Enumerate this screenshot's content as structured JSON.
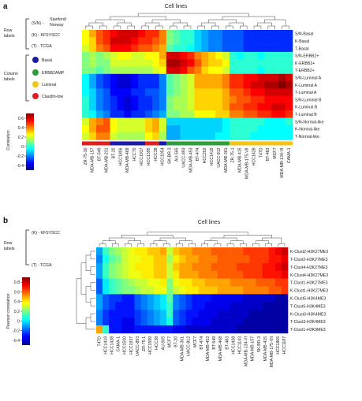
{
  "chart_data": [
    {
      "type": "heatmap",
      "panel": "a",
      "title": "Cell lines",
      "colorbar_label": "Correlation",
      "colorbar_ticks": [
        -0.4,
        -0.2,
        0,
        0.2,
        0.4,
        0.6
      ],
      "clim": [
        -0.5,
        0.7
      ],
      "row_legend_title": "Row labels",
      "row_legend": [
        {
          "code": "(S/N) - ",
          "name": "Stanford/ Norway"
        },
        {
          "code": "(K) - ",
          "name": "KFSYSCC"
        },
        {
          "code": "(T) - ",
          "name": "TCGA"
        }
      ],
      "column_legend_title": "Column labels",
      "column_legend": [
        {
          "name": "Basal",
          "color": "#1a1aa8"
        },
        {
          "name": "ERBB2AMP",
          "color": "#2e9e3a"
        },
        {
          "name": "Luminal",
          "color": "#f2c414"
        },
        {
          "name": "Claudin-low",
          "color": "#e01e1e"
        }
      ],
      "rows": [
        "S/N-Basal",
        "K-Basal",
        "T-Basal",
        "S/N-ERBB2+",
        "K-ERBB2+",
        "T-ERBB2+",
        "S/N-Luminal A",
        "K-Luminal A",
        "T-Luminal A",
        "S/N-Luminal B",
        "K-Luminal B",
        "T-Luminal B",
        "S/N-Normal-like",
        "K-Normal-like",
        "T-Normal-like"
      ],
      "columns": [
        "ZR-75-30",
        "MDA-MB-157",
        "BT-549",
        "MDA-MB-231",
        "BT-20",
        "HCC1806",
        "MDA-MB-468",
        "HCC70",
        "HCC1937",
        "HCC1395",
        "HCC38",
        "HCC1954",
        "SK-BR-3",
        "AU-565",
        "UACC-893",
        "MDA-MB-453",
        "BT-474",
        "HCC202",
        "HCC1419",
        "UACC-812",
        "MDA-MB-361",
        "ZR-75-1",
        "MDA-MB-415",
        "MDA-MB-175-VII",
        "HCC1428",
        "T47D",
        "BT-483",
        "MCF7",
        "MDA-MB-134-VI",
        "CAMA-1"
      ],
      "column_classes": [
        "Claudin-low",
        "Claudin-low",
        "Claudin-low",
        "Claudin-low",
        "Basal",
        "Basal",
        "Basal",
        "Basal",
        "Basal",
        "Claudin-low",
        "Claudin-low",
        "Basal",
        "ERBB2AMP",
        "ERBB2AMP",
        "ERBB2AMP",
        "ERBB2AMP",
        "ERBB2AMP",
        "ERBB2AMP",
        "ERBB2AMP",
        "ERBB2AMP",
        "ERBB2AMP",
        "Luminal",
        "Luminal",
        "Luminal",
        "Luminal",
        "Luminal",
        "Luminal",
        "Luminal",
        "Luminal",
        "Luminal"
      ],
      "values": [
        [
          0.25,
          0.35,
          0.45,
          0.5,
          0.55,
          0.6,
          0.6,
          0.6,
          0.55,
          0.5,
          0.5,
          0.4,
          0.1,
          0.05,
          0.0,
          0.0,
          -0.1,
          -0.15,
          -0.2,
          -0.2,
          -0.25,
          -0.25,
          -0.25,
          -0.3,
          -0.3,
          -0.3,
          -0.3,
          -0.3,
          -0.3,
          -0.3
        ],
        [
          0.25,
          0.3,
          0.45,
          0.5,
          0.6,
          0.6,
          0.6,
          0.55,
          0.5,
          0.5,
          0.45,
          0.4,
          0.1,
          0.05,
          0.0,
          0.0,
          -0.1,
          -0.15,
          -0.2,
          -0.2,
          -0.25,
          -0.25,
          -0.25,
          -0.3,
          -0.3,
          -0.3,
          -0.3,
          -0.3,
          -0.3,
          -0.3
        ],
        [
          0.2,
          0.3,
          0.4,
          0.45,
          0.55,
          0.55,
          0.55,
          0.5,
          0.45,
          0.45,
          0.4,
          0.35,
          0.05,
          0.0,
          0.0,
          -0.05,
          -0.1,
          -0.15,
          -0.2,
          -0.2,
          -0.25,
          -0.25,
          -0.25,
          -0.3,
          -0.3,
          -0.3,
          -0.3,
          -0.3,
          -0.3,
          -0.3
        ],
        [
          0.1,
          0.15,
          0.1,
          0.15,
          0.2,
          0.25,
          0.25,
          0.2,
          0.2,
          0.25,
          0.25,
          0.35,
          0.6,
          0.6,
          0.55,
          0.5,
          0.4,
          0.35,
          0.3,
          0.25,
          0.2,
          0.0,
          -0.05,
          0.0,
          0.0,
          -0.05,
          0.0,
          0.0,
          0.0,
          0.0
        ],
        [
          0.1,
          0.15,
          0.1,
          0.1,
          0.2,
          0.2,
          0.2,
          0.2,
          0.2,
          0.2,
          0.25,
          0.3,
          0.65,
          0.65,
          0.6,
          0.55,
          0.45,
          0.35,
          0.3,
          0.3,
          0.25,
          0.0,
          0.0,
          0.0,
          0.0,
          0.0,
          0.0,
          0.0,
          0.0,
          0.0
        ],
        [
          0.1,
          0.1,
          0.05,
          0.1,
          0.15,
          0.15,
          0.15,
          0.15,
          0.15,
          0.15,
          0.2,
          0.25,
          0.6,
          0.6,
          0.55,
          0.45,
          0.4,
          0.3,
          0.25,
          0.25,
          0.2,
          0.0,
          0.0,
          0.0,
          0.0,
          -0.05,
          0.0,
          0.0,
          0.0,
          0.0
        ],
        [
          -0.05,
          -0.15,
          -0.25,
          -0.3,
          -0.35,
          -0.4,
          -0.4,
          -0.35,
          -0.3,
          -0.3,
          -0.3,
          -0.2,
          0.05,
          0.1,
          0.15,
          0.2,
          0.35,
          0.35,
          0.35,
          0.35,
          0.4,
          0.5,
          0.5,
          0.55,
          0.55,
          0.6,
          0.6,
          0.6,
          0.65,
          0.6
        ],
        [
          -0.05,
          -0.15,
          -0.25,
          -0.3,
          -0.35,
          -0.4,
          -0.4,
          -0.35,
          -0.3,
          -0.3,
          -0.3,
          -0.2,
          0.05,
          0.1,
          0.15,
          0.2,
          0.35,
          0.35,
          0.35,
          0.35,
          0.4,
          0.5,
          0.5,
          0.55,
          0.6,
          0.6,
          0.65,
          0.65,
          0.7,
          0.65
        ],
        [
          -0.05,
          -0.1,
          -0.2,
          -0.25,
          -0.35,
          -0.35,
          -0.35,
          -0.3,
          -0.3,
          -0.25,
          -0.25,
          -0.2,
          0.05,
          0.1,
          0.15,
          0.2,
          0.3,
          0.3,
          0.3,
          0.3,
          0.35,
          0.45,
          0.45,
          0.5,
          0.55,
          0.55,
          0.6,
          0.6,
          0.6,
          0.6
        ],
        [
          0.0,
          -0.1,
          -0.2,
          -0.25,
          -0.3,
          -0.35,
          -0.4,
          -0.35,
          -0.3,
          -0.3,
          -0.25,
          -0.2,
          0.1,
          0.15,
          0.15,
          0.2,
          0.3,
          0.3,
          0.3,
          0.3,
          0.35,
          0.4,
          0.45,
          0.45,
          0.5,
          0.5,
          0.55,
          0.55,
          0.55,
          0.55
        ],
        [
          0.0,
          -0.1,
          -0.2,
          -0.25,
          -0.3,
          -0.35,
          -0.4,
          -0.35,
          -0.3,
          -0.3,
          -0.25,
          -0.2,
          0.1,
          0.15,
          0.15,
          0.2,
          0.3,
          0.3,
          0.3,
          0.3,
          0.35,
          0.45,
          0.45,
          0.5,
          0.5,
          0.55,
          0.55,
          0.6,
          0.6,
          0.55
        ],
        [
          0.0,
          -0.05,
          -0.15,
          -0.2,
          -0.3,
          -0.3,
          -0.35,
          -0.3,
          -0.3,
          -0.25,
          -0.2,
          -0.15,
          0.1,
          0.1,
          0.15,
          0.15,
          0.25,
          0.25,
          0.25,
          0.3,
          0.3,
          0.4,
          0.4,
          0.45,
          0.45,
          0.5,
          0.5,
          0.55,
          0.55,
          0.5
        ],
        [
          0.2,
          0.35,
          0.4,
          0.45,
          0.25,
          0.2,
          0.2,
          0.2,
          0.2,
          0.3,
          0.35,
          0.2,
          -0.1,
          -0.1,
          -0.1,
          -0.1,
          -0.1,
          -0.1,
          -0.1,
          -0.1,
          -0.05,
          0.0,
          0.0,
          0.0,
          0.0,
          0.0,
          -0.05,
          -0.05,
          -0.05,
          0.0
        ],
        [
          0.25,
          0.35,
          0.45,
          0.45,
          0.25,
          0.2,
          0.2,
          0.2,
          0.2,
          0.3,
          0.35,
          0.2,
          -0.15,
          -0.15,
          -0.1,
          -0.1,
          -0.1,
          -0.1,
          -0.1,
          -0.1,
          -0.05,
          0.0,
          0.0,
          0.0,
          0.0,
          -0.05,
          -0.05,
          -0.05,
          -0.05,
          -0.05
        ],
        [
          0.2,
          0.3,
          0.4,
          0.4,
          0.2,
          0.15,
          0.15,
          0.15,
          0.15,
          0.25,
          0.3,
          0.15,
          -0.15,
          -0.15,
          -0.1,
          -0.1,
          -0.1,
          -0.1,
          -0.1,
          -0.05,
          -0.05,
          0.0,
          0.0,
          0.0,
          -0.05,
          -0.05,
          -0.05,
          -0.05,
          -0.05,
          -0.05
        ]
      ]
    },
    {
      "type": "heatmap",
      "panel": "b",
      "title": "Cell lines",
      "colorbar_label": "Pearson correlation",
      "colorbar_ticks": [
        -0.4,
        -0.2,
        0,
        0.2,
        0.4,
        0.6,
        0.8
      ],
      "clim": [
        -0.5,
        0.9
      ],
      "row_legend_title": "Row labels",
      "row_legend": [
        {
          "code": "(K) - ",
          "name": "KFSYSCC"
        },
        {
          "code": "(T) - ",
          "name": "TCGA"
        }
      ],
      "rows": [
        "K-Clust2-H3K27ME3",
        "T-Clust2-H3K27ME3",
        "T-Clust4-H3K27ME3",
        "K-Clust4-H3K27ME3",
        "T-Clust1-H3K27ME3",
        "K-Clust1-H3K27ME3",
        "K-Clust5-H3K4ME3",
        "T-Clust5-H3K4ME3",
        "K-Clust3-H3K4ME3",
        "T-Clust3-H3K4ME3",
        "T-Clust1-H3K9ME3"
      ],
      "columns": [
        "T47D",
        "HCC1419",
        "HCC1428",
        "CAMA-1",
        "HCC1500",
        "HCC1937",
        "UACC-893",
        "ZR-75-1",
        "HCC1599",
        "HCC38",
        "AU-565",
        "MCF7",
        "BT-20",
        "MDA-MB-361",
        "UACC-812",
        "MCF7",
        "BT-474",
        "MDA-MB-453",
        "BT-549",
        "MDA-MB-468",
        "BT-483",
        "HCC1428",
        "HCC1143",
        "MDA-MB-134-VI",
        "MDA-MB-157",
        "SK-BR-3",
        "MDA-MB-415",
        "MDA-MB-175-VII",
        "HCC1806",
        "HCC1187"
      ],
      "values": [
        [
          -0.1,
          0.1,
          0.2,
          0.25,
          0.3,
          0.35,
          0.4,
          0.4,
          0.45,
          0.45,
          0.5,
          0.3,
          0.45,
          0.5,
          0.5,
          0.55,
          0.55,
          0.55,
          0.6,
          0.6,
          0.6,
          0.6,
          0.6,
          0.65,
          0.65,
          0.65,
          0.65,
          0.7,
          0.75,
          0.8
        ],
        [
          -0.15,
          0.05,
          0.15,
          0.2,
          0.3,
          0.35,
          0.35,
          0.4,
          0.4,
          0.45,
          0.45,
          0.25,
          0.4,
          0.45,
          0.5,
          0.5,
          0.55,
          0.55,
          0.55,
          0.6,
          0.6,
          0.6,
          0.6,
          0.6,
          0.65,
          0.65,
          0.65,
          0.7,
          0.7,
          0.75
        ],
        [
          -0.1,
          0.1,
          0.2,
          0.25,
          0.3,
          0.35,
          0.4,
          0.4,
          0.4,
          0.45,
          0.45,
          0.3,
          0.45,
          0.5,
          0.5,
          0.55,
          0.55,
          0.55,
          0.6,
          0.6,
          0.6,
          0.6,
          0.65,
          0.65,
          0.65,
          0.65,
          0.7,
          0.7,
          0.75,
          0.8
        ],
        [
          -0.1,
          0.1,
          0.2,
          0.25,
          0.3,
          0.35,
          0.35,
          0.4,
          0.4,
          0.45,
          0.45,
          0.3,
          0.4,
          0.5,
          0.5,
          0.5,
          0.55,
          0.55,
          0.55,
          0.6,
          0.6,
          0.6,
          0.6,
          0.65,
          0.65,
          0.65,
          0.7,
          0.7,
          0.7,
          0.75
        ],
        [
          -0.2,
          0.0,
          0.1,
          0.15,
          0.2,
          0.25,
          0.3,
          0.3,
          0.35,
          0.35,
          0.4,
          0.2,
          0.35,
          0.4,
          0.4,
          0.45,
          0.45,
          0.5,
          0.5,
          0.5,
          0.5,
          0.55,
          0.55,
          0.55,
          0.55,
          0.6,
          0.6,
          0.6,
          0.65,
          0.65
        ],
        [
          -0.2,
          0.0,
          0.1,
          0.15,
          0.2,
          0.2,
          0.25,
          0.3,
          0.3,
          0.35,
          0.35,
          0.2,
          0.3,
          0.35,
          0.4,
          0.4,
          0.45,
          0.45,
          0.45,
          0.5,
          0.5,
          0.5,
          0.5,
          0.55,
          0.55,
          0.55,
          0.55,
          0.6,
          0.6,
          0.65
        ],
        [
          -0.1,
          -0.2,
          -0.25,
          -0.25,
          -0.3,
          -0.3,
          -0.2,
          -0.15,
          -0.1,
          -0.05,
          0.0,
          0.15,
          -0.15,
          -0.2,
          -0.25,
          -0.3,
          -0.3,
          -0.3,
          -0.35,
          -0.35,
          -0.35,
          -0.35,
          -0.35,
          -0.4,
          -0.4,
          -0.4,
          -0.4,
          -0.4,
          -0.45,
          -0.45
        ],
        [
          -0.1,
          -0.2,
          -0.25,
          -0.3,
          -0.3,
          -0.3,
          -0.2,
          -0.15,
          -0.1,
          -0.05,
          0.0,
          0.1,
          -0.15,
          -0.2,
          -0.25,
          -0.3,
          -0.3,
          -0.35,
          -0.35,
          -0.35,
          -0.35,
          -0.4,
          -0.4,
          -0.4,
          -0.4,
          -0.4,
          -0.45,
          -0.45,
          -0.45,
          -0.45
        ],
        [
          -0.15,
          -0.25,
          -0.3,
          -0.3,
          -0.3,
          -0.3,
          -0.25,
          -0.2,
          -0.15,
          -0.1,
          -0.05,
          0.1,
          -0.2,
          -0.25,
          -0.3,
          -0.3,
          -0.35,
          -0.35,
          -0.35,
          -0.4,
          -0.4,
          -0.4,
          -0.4,
          -0.4,
          -0.45,
          -0.45,
          -0.45,
          -0.45,
          -0.45,
          -0.45
        ],
        [
          -0.15,
          -0.25,
          -0.3,
          -0.3,
          -0.35,
          -0.35,
          -0.25,
          -0.2,
          -0.15,
          -0.1,
          -0.05,
          0.05,
          -0.2,
          -0.25,
          -0.3,
          -0.35,
          -0.35,
          -0.35,
          -0.4,
          -0.4,
          -0.4,
          -0.4,
          -0.4,
          -0.45,
          -0.45,
          -0.45,
          -0.45,
          -0.45,
          -0.45,
          -0.45
        ],
        [
          0.5,
          0.1,
          -0.3,
          -0.3,
          -0.35,
          -0.35,
          -0.3,
          -0.3,
          -0.3,
          -0.3,
          -0.3,
          -0.3,
          -0.35,
          -0.35,
          -0.4,
          -0.4,
          -0.4,
          -0.4,
          -0.4,
          -0.4,
          -0.4,
          -0.4,
          -0.45,
          -0.45,
          -0.45,
          -0.45,
          -0.45,
          -0.45,
          -0.45,
          -0.45
        ]
      ]
    }
  ]
}
